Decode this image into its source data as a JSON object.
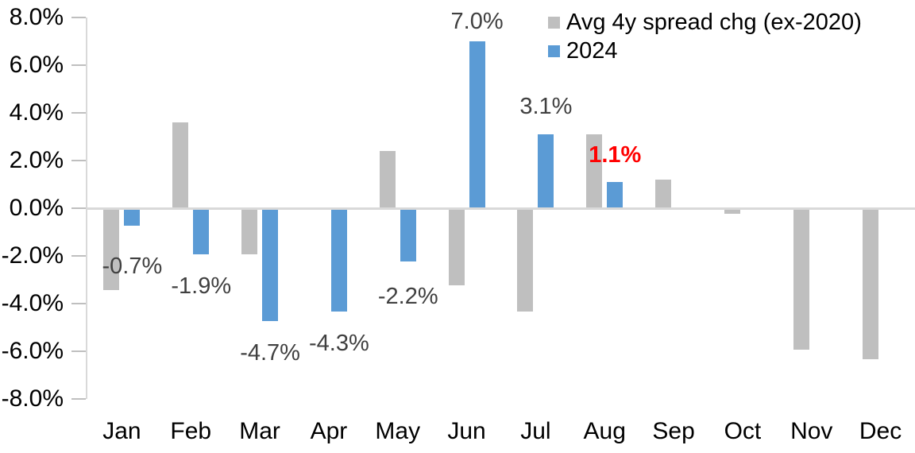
{
  "legend": {
    "items": [
      {
        "label": "Avg 4y spread chg (ex-2020)",
        "color": "#BFBFBF"
      },
      {
        "label": "2024",
        "color": "#5B9BD5"
      }
    ]
  },
  "axis": {
    "yticks": [
      "8.0%",
      "6.0%",
      "4.0%",
      "2.0%",
      "0.0%",
      "-2.0%",
      "-4.0%",
      "-6.0%",
      "-8.0%"
    ]
  },
  "chart_data": {
    "type": "bar",
    "title": "",
    "xlabel": "",
    "ylabel": "",
    "categories": [
      "Jan",
      "Feb",
      "Mar",
      "Apr",
      "May",
      "Jun",
      "Jul",
      "Aug",
      "Sep",
      "Oct",
      "Nov",
      "Dec"
    ],
    "series": [
      {
        "name": "Avg 4y spread chg (ex-2020)",
        "color": "#BFBFBF",
        "values": [
          -3.4,
          3.6,
          -1.9,
          0.0,
          2.4,
          -3.2,
          -4.3,
          3.1,
          1.2,
          -0.2,
          -5.9,
          -6.3
        ]
      },
      {
        "name": "2024",
        "color": "#5B9BD5",
        "values": [
          -0.7,
          -1.9,
          -4.7,
          -4.3,
          -2.2,
          7.0,
          3.1,
          1.1,
          null,
          null,
          null,
          null
        ],
        "point_labels": [
          {
            "text": "-0.7%",
            "color": "#404040",
            "bold": false,
            "dy": 11
          },
          {
            "text": "-1.9%",
            "color": "#404040",
            "bold": false,
            "dy": 0
          },
          {
            "text": "-4.7%",
            "color": "#404040",
            "bold": false,
            "dy": 0
          },
          {
            "text": "-4.3%",
            "color": "#404040",
            "bold": false,
            "dy": 0
          },
          {
            "text": "-2.2%",
            "color": "#404040",
            "bold": false,
            "dy": 4
          },
          {
            "text": "7.0%",
            "color": "#404040",
            "bold": false,
            "dy": 0
          },
          {
            "text": "3.1%",
            "color": "#404040",
            "bold": false,
            "dy": -10
          },
          {
            "text": "1.1%",
            "color": "#FF0000",
            "bold": true,
            "dy": -9
          },
          null,
          null,
          null,
          null
        ]
      }
    ],
    "ylim": [
      -8,
      8
    ],
    "ytick_step": 2,
    "grid": false,
    "legend_position": "top-right",
    "axis_color": "#D9D9D9",
    "tick_color": "#BFBFBF",
    "label_color": "#404040"
  }
}
